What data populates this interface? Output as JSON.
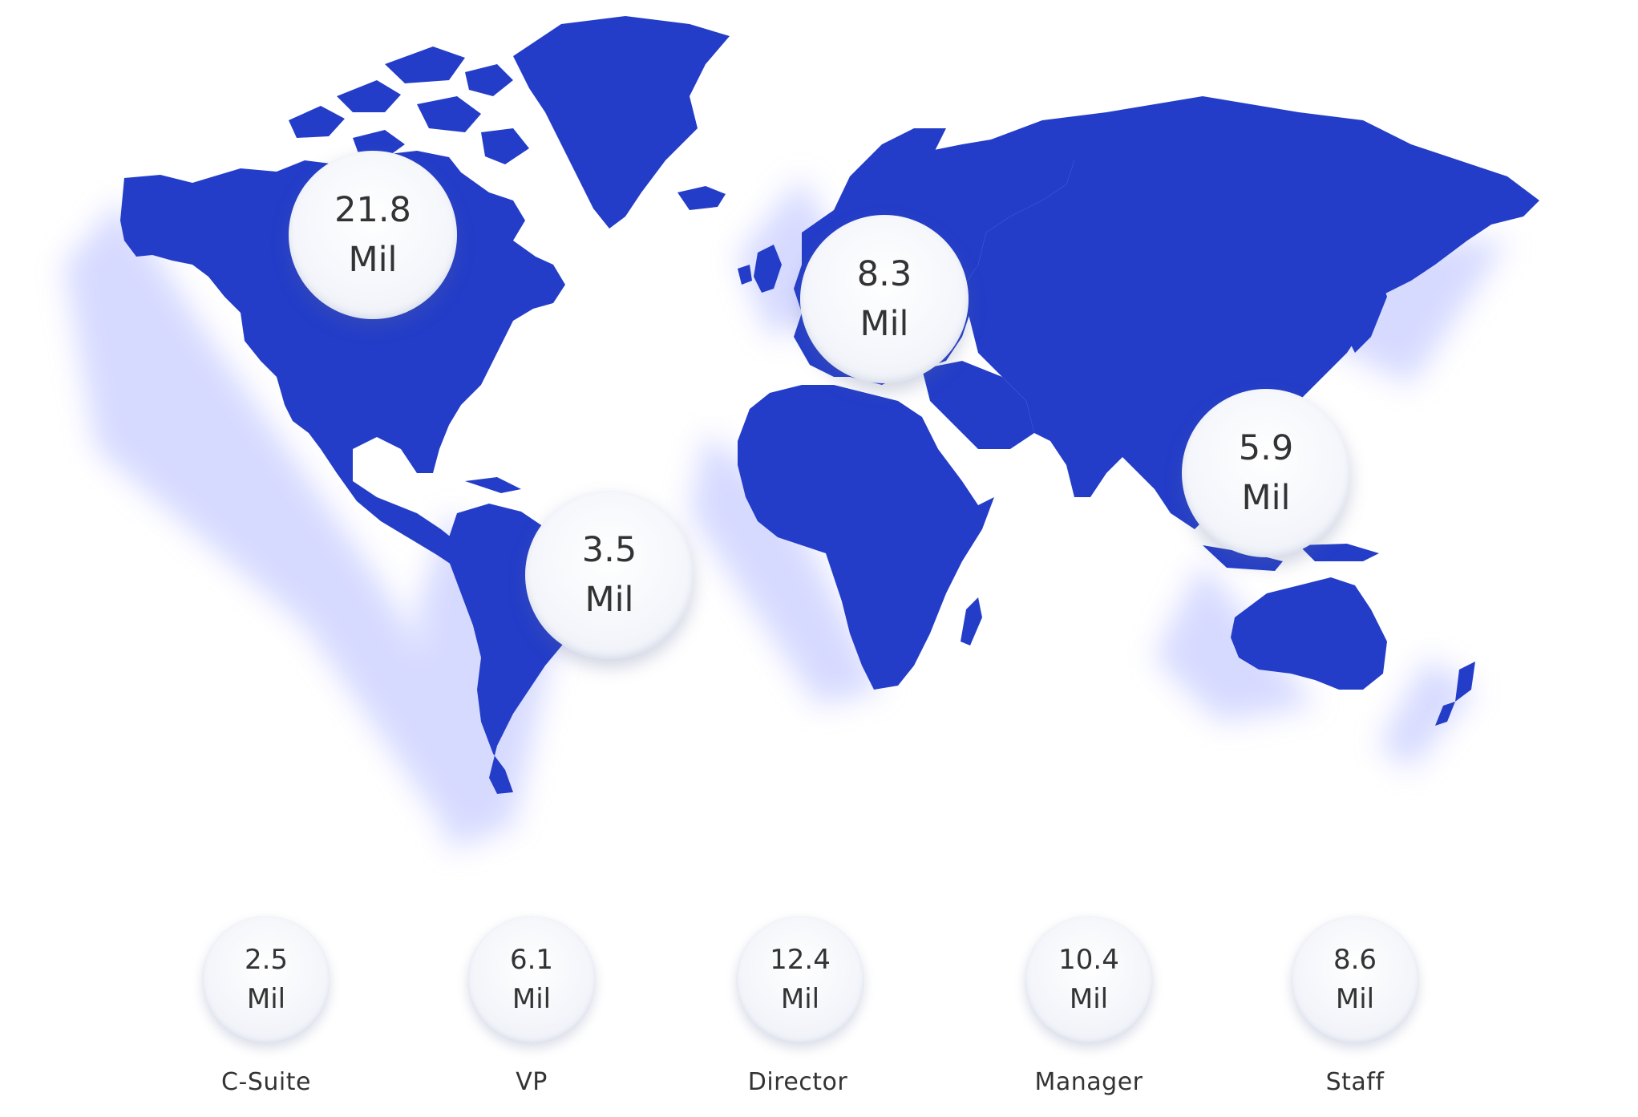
{
  "map": {
    "land_color": "#233dc9",
    "shadow_color": "#c9ceff",
    "regions": [
      {
        "id": "north-america",
        "value": "21.8",
        "unit": "Mil"
      },
      {
        "id": "south-america",
        "value": "3.5",
        "unit": "Mil"
      },
      {
        "id": "europe",
        "value": "8.3",
        "unit": "Mil"
      },
      {
        "id": "asia-pacific",
        "value": "5.9",
        "unit": "Mil"
      }
    ]
  },
  "roles": [
    {
      "label": "C-Suite",
      "value": "2.5",
      "unit": "Mil"
    },
    {
      "label": "VP",
      "value": "6.1",
      "unit": "Mil"
    },
    {
      "label": "Director",
      "value": "12.4",
      "unit": "Mil"
    },
    {
      "label": "Manager",
      "value": "10.4",
      "unit": "Mil"
    },
    {
      "label": "Staff",
      "value": "8.6",
      "unit": "Mil"
    }
  ]
}
